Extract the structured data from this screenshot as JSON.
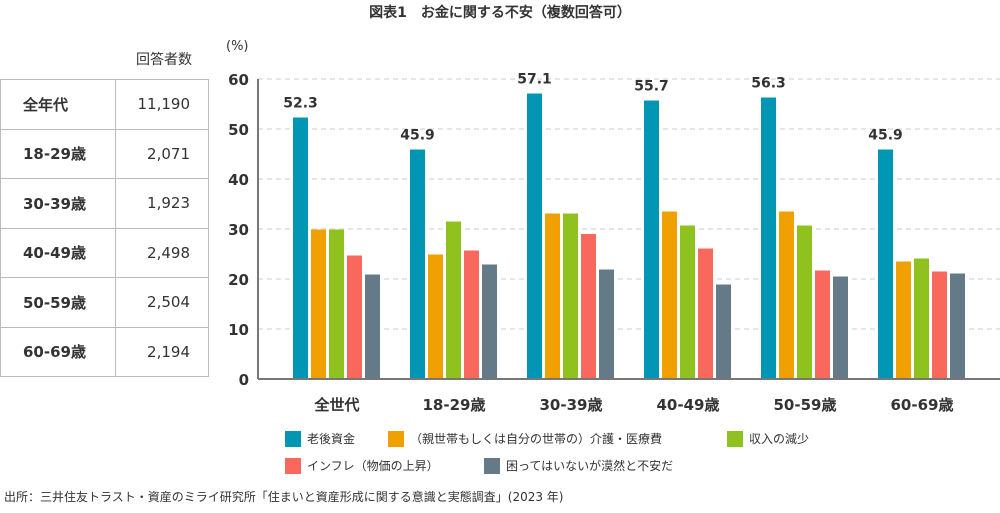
{
  "title": "図表1　お金に関する不安（複数回答可）",
  "table": {
    "header": "回答者数",
    "rows": [
      {
        "label": "全年代",
        "value": "11,190"
      },
      {
        "label": "18-29歳",
        "value": "2,071"
      },
      {
        "label": "30-39歳",
        "value": "1,923"
      },
      {
        "label": "40-49歳",
        "value": "2,498"
      },
      {
        "label": "50-59歳",
        "value": "2,504"
      },
      {
        "label": "60-69歳",
        "value": "2,194"
      }
    ]
  },
  "chart_data": {
    "type": "bar",
    "ylabel": "(%)",
    "ylim": [
      0,
      60
    ],
    "yticks": [
      0,
      10,
      20,
      30,
      40,
      50,
      60
    ],
    "grid": true,
    "legend_placement": "bottom",
    "categories": [
      "全世代",
      "18-29歳",
      "30-39歳",
      "40-49歳",
      "50-59歳",
      "60-69歳"
    ],
    "series": [
      {
        "name": "老後資金",
        "color": "#0096b4",
        "values": [
          52.3,
          45.9,
          57.1,
          55.7,
          56.3,
          45.9
        ],
        "labeled": true
      },
      {
        "name": "（親世帯もしくは自分の世帯の）介護・医療費",
        "color": "#f0a000",
        "values": [
          29.9,
          24.9,
          33.1,
          33.5,
          33.5,
          23.5
        ]
      },
      {
        "name": "収入の減少",
        "color": "#8fc21f",
        "values": [
          29.9,
          31.5,
          33.1,
          30.7,
          30.7,
          24.1
        ]
      },
      {
        "name": "インフレ（物価の上昇）",
        "color": "#f8685c",
        "values": [
          24.7,
          25.7,
          29.0,
          26.1,
          21.7,
          21.5
        ]
      },
      {
        "name": "困ってはいないが漠然と不安だ",
        "color": "#657a89",
        "values": [
          20.9,
          22.9,
          21.9,
          18.9,
          20.5,
          21.1
        ]
      }
    ]
  },
  "source": "出所：三井住友トラスト・資産のミライ研究所「住まいと資産形成に関する意識と実態調査」(2023 年)"
}
